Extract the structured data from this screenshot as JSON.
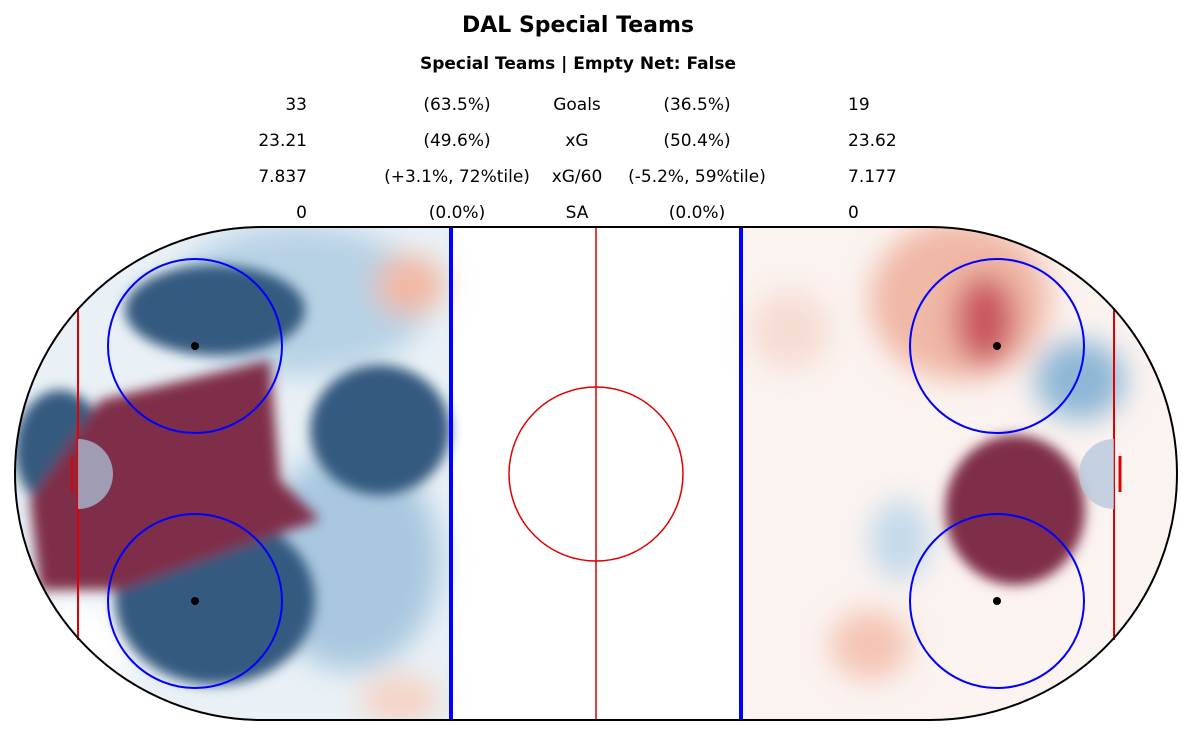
{
  "header": {
    "title": "DAL Special Teams",
    "subtitle": "Special Teams | Empty Net: False"
  },
  "stats": {
    "rows": [
      [
        "33",
        "(63.5%)",
        "Goals",
        "(36.5%)",
        "19"
      ],
      [
        "23.21",
        "(49.6%)",
        "xG",
        "(50.4%)",
        "23.62"
      ],
      [
        "7.837",
        "(+3.1%, 72%tile)",
        "xG/60",
        "(-5.2%, 59%tile)",
        "7.177"
      ],
      [
        "0",
        "(0.0%)",
        "SA",
        "(0.0%)",
        "0"
      ]
    ]
  }
}
